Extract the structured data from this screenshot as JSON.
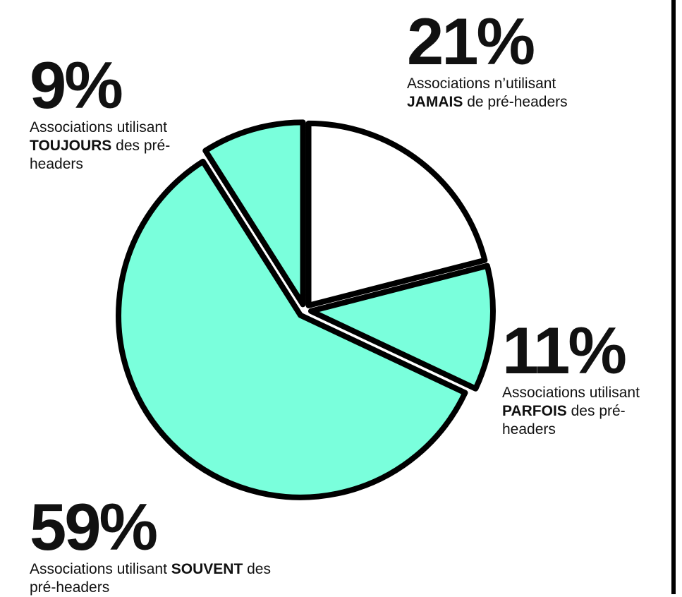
{
  "chart_data": {
    "type": "pie",
    "values": [
      21,
      11,
      59,
      9
    ],
    "value_labels": [
      "21%",
      "11%",
      "59%",
      "9%"
    ],
    "colors": [
      "#ffffff",
      "#7affdc",
      "#7affdc",
      "#7affdc"
    ],
    "labels": [
      [
        {
          "text": "Associations n’utilisant ",
          "bold": false
        },
        {
          "text": "JAMAIS",
          "bold": true
        },
        {
          "text": " de pré-headers",
          "bold": false
        }
      ],
      [
        {
          "text": "Associations utilisant ",
          "bold": false
        },
        {
          "text": "PARFOIS",
          "bold": true
        },
        {
          "text": " des pré-headers",
          "bold": false
        }
      ],
      [
        {
          "text": "Associations utilisant ",
          "bold": false
        },
        {
          "text": "SOUVENT",
          "bold": true
        },
        {
          "text": " des pré-headers",
          "bold": false
        }
      ],
      [
        {
          "text": "Associations utilisant ",
          "bold": false
        },
        {
          "text": "TOUJOURS",
          "bold": true
        },
        {
          "text": " des pré-headers",
          "bold": false
        }
      ]
    ]
  }
}
